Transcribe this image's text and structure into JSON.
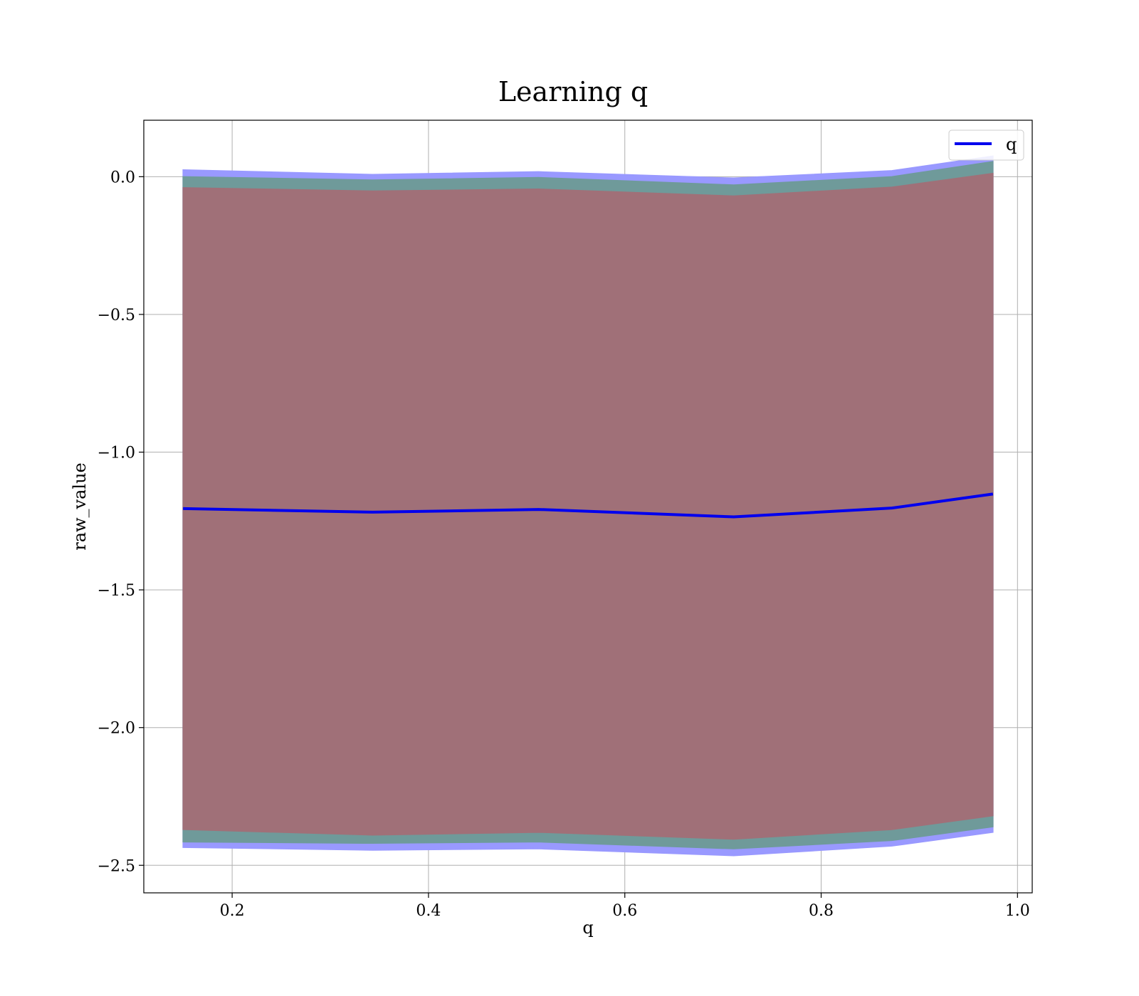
{
  "chart_data": {
    "type": "area",
    "title": "Learning q",
    "xlabel": "q",
    "ylabel": "raw_value",
    "xlim": [
      0.11,
      1.015
    ],
    "ylim": [
      -2.6,
      0.205
    ],
    "xticks": [
      0.2,
      0.4,
      0.6,
      0.8,
      1.0
    ],
    "xtick_labels": [
      "0.2",
      "0.4",
      "0.6",
      "0.8",
      "1.0"
    ],
    "yticks": [
      0.0,
      -0.5,
      -1.0,
      -1.5,
      -2.0,
      -2.5
    ],
    "ytick_labels": [
      "0.0",
      "−0.5",
      "−1.0",
      "−1.5",
      "−2.0",
      "−2.5"
    ],
    "grid": true,
    "legend_position": "top-right",
    "x": [
      0.15,
      0.343,
      0.512,
      0.711,
      0.872,
      0.975
    ],
    "series": [
      {
        "name": "q",
        "color": "#0000ee",
        "values": [
          -1.205,
          -1.218,
          -1.208,
          -1.235,
          -1.203,
          -1.152
        ]
      }
    ],
    "bands": [
      {
        "color": "#9999ff",
        "upper": [
          0.025,
          0.008,
          0.018,
          -0.005,
          0.022,
          0.075
        ],
        "lower": [
          -2.435,
          -2.445,
          -2.44,
          -2.465,
          -2.43,
          -2.38
        ]
      },
      {
        "color": "#6f9a9a",
        "upper": [
          0.0,
          -0.012,
          -0.003,
          -0.03,
          0.0,
          0.055
        ],
        "lower": [
          -2.415,
          -2.42,
          -2.415,
          -2.44,
          -2.41,
          -2.36
        ]
      },
      {
        "color": "#a07078",
        "upper": [
          -0.04,
          -0.052,
          -0.045,
          -0.07,
          -0.038,
          0.012
        ],
        "lower": [
          -2.37,
          -2.39,
          -2.38,
          -2.405,
          -2.37,
          -2.32
        ]
      }
    ]
  }
}
